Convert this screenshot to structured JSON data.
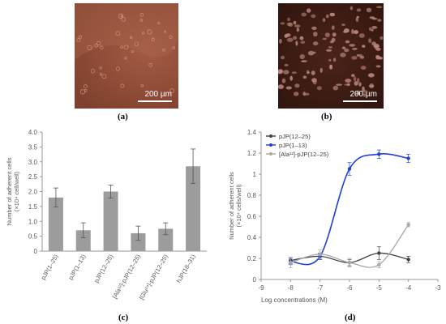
{
  "panels": {
    "a": {
      "label": "(a)",
      "scale_text": "200 µm"
    },
    "b": {
      "label": "(b)",
      "scale_text": "200 µm"
    },
    "c": {
      "label": "(c)"
    },
    "d": {
      "label": "(d)"
    }
  },
  "colors": {
    "bar": "#9c9c9c",
    "pjp12_25": "#404040",
    "pjp1_13": "#1f3fd6",
    "ala": "#a8a8a8",
    "micro_a": "#8d4a36",
    "micro_b": "#3b1b13"
  },
  "chart_data": [
    {
      "type": "bar",
      "categories": [
        "pJP(1–25)",
        "pJP(1–13)",
        "pJP(12–25)",
        "[Ala¹²]-pJP(12–25)",
        "[Glu²⁴]-pJP(12–25)",
        "hJP(18–31)"
      ],
      "values": [
        1.8,
        0.7,
        2.0,
        0.6,
        0.75,
        2.85
      ],
      "errors": [
        0.32,
        0.25,
        0.22,
        0.24,
        0.2,
        0.58
      ],
      "ylabel": "Number of adherent cells (×10⁴ cell/well)",
      "ylim": [
        0,
        4.0
      ],
      "yticks": [
        "0",
        "0.5",
        "1.0",
        "1.5",
        "2.0",
        "2.5",
        "3.0",
        "3.5",
        "4.0"
      ],
      "grid": false
    },
    {
      "type": "line",
      "x": [
        -8,
        -7,
        -6,
        -5,
        -4
      ],
      "series": [
        {
          "name": "pJP(12–25)",
          "values": [
            0.18,
            0.22,
            0.16,
            0.25,
            0.19
          ],
          "errors": [
            0.03,
            0.03,
            0.03,
            0.06,
            0.03
          ]
        },
        {
          "name": "pJP(1–13)",
          "values": [
            0.17,
            0.22,
            1.05,
            1.19,
            1.15
          ],
          "errors": [
            0.03,
            0.03,
            0.06,
            0.04,
            0.04
          ]
        },
        {
          "name": "[Ala¹²]-pJP(12–25)",
          "values": [
            0.16,
            0.24,
            0.16,
            0.14,
            0.52
          ],
          "errors": [
            0.05,
            0.04,
            0.04,
            0.03,
            0.02
          ]
        }
      ],
      "xlabel": "Log concentrations (M)",
      "ylabel": "Number of adherent cells (×10⁴ cells/well)",
      "xlim": [
        -9,
        -3
      ],
      "ylim": [
        0,
        1.4
      ],
      "xticks": [
        "-9",
        "-8",
        "-7",
        "-6",
        "-5",
        "-4",
        "-3"
      ],
      "yticks": [
        "0",
        "0.2",
        "0.4",
        "0.6",
        "0.8",
        "1",
        "1.2",
        "1.4"
      ],
      "legend_position": "top-left",
      "grid": false
    }
  ]
}
